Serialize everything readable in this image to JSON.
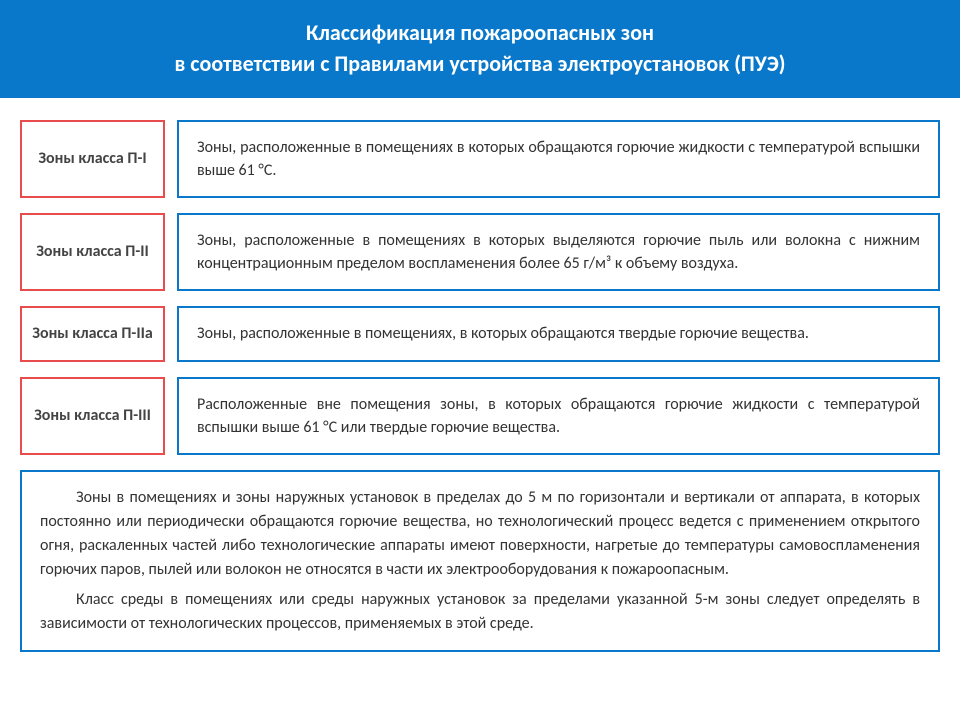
{
  "header": {
    "line1": "Классификация   пожароопасных зон",
    "line2": "в соответствии с Правилами устройства электроустановок (ПУЭ)"
  },
  "rows": [
    {
      "label": "Зоны класса П-I",
      "desc": "Зоны, расположенные в помещениях в которых обращаются горючие жидкости с температурой вспышки выше 61 °С."
    },
    {
      "label": "Зоны класса П-II",
      "desc": "Зоны, расположенные в помещениях в которых выделяются горючие пыль или волокна с нижним концентрационным пределом воспламенения более 65 г/м³ к объему воздуха."
    },
    {
      "label": "Зоны класса П-IIа",
      "desc": "Зоны, расположенные в помещениях, в которых обращаются твердые горючие вещества."
    },
    {
      "label": "Зоны класса П-III",
      "desc": "Расположенные вне помещения зоны, в которых обращаются горючие жидкости с температурой вспышки выше 61 °С или твердые горючие вещества."
    }
  ],
  "footer": {
    "p1": "Зоны в помещениях и зоны наружных установок в пределах до 5 м по горизонтали и вертикали от аппарата, в которых постоянно или периодически обращаются горючие вещества, но технологический процесс ведется с применением открытого огня, раскаленных частей либо технологические аппараты имеют поверхности, нагретые до температуры самовоспламенения горючих паров, пылей или волокон не относятся в части их электрооборудования к пожароопасным.",
    "p2": "Класс среды в помещениях или среды наружных установок за пределами указанной 5-м зоны следует определять в зависимости от технологических процессов, применяемых в этой среде."
  },
  "colors": {
    "header_bg": "#0978ca",
    "header_text": "#ffffff",
    "label_border": "#e84c4c",
    "desc_border": "#0978ca",
    "text": "#333333",
    "label_text": "#444444",
    "background": "#ffffff"
  },
  "typography": {
    "header_fontsize": 22,
    "body_fontsize": 16,
    "header_weight": "bold",
    "label_weight": "bold"
  }
}
